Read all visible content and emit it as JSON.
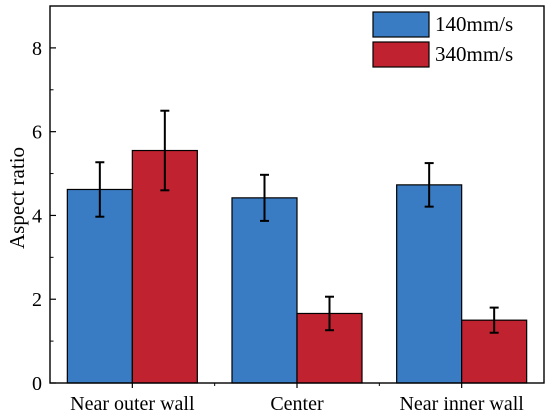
{
  "chart_data": {
    "type": "bar",
    "categories": [
      "Near outer wall",
      "Center",
      "Near inner wall"
    ],
    "series": [
      {
        "name": "140mm/s",
        "color": "#3a7cc4",
        "values": [
          4.62,
          4.42,
          4.73
        ],
        "errors": [
          0.65,
          0.55,
          0.52
        ]
      },
      {
        "name": "340mm/s",
        "color": "#c0232f",
        "values": [
          5.55,
          1.66,
          1.5
        ],
        "errors": [
          0.95,
          0.4,
          0.3
        ]
      }
    ],
    "xlabel": "",
    "ylabel": "Aspect ratio",
    "ylim": [
      0,
      9
    ],
    "yticks": [
      0,
      2,
      4,
      6,
      8
    ],
    "grid": false,
    "legend": "top-right"
  }
}
